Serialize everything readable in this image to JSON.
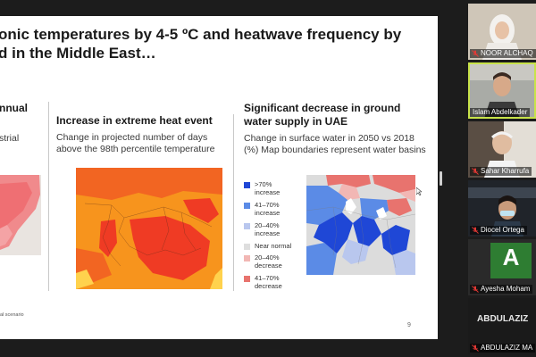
{
  "slide": {
    "title": "onic temperatures by 4-5 ºC and heatwave frequency by\nd in the Middle East…",
    "panel_left": {
      "heading": "nnual",
      "sub": "strial"
    },
    "panel_mid": {
      "heading": "Increase in extreme heat event",
      "sub": "Change in projected number of days above the 98th percentile temperature"
    },
    "panel_right": {
      "heading": "Significant decrease in ground water supply in UAE",
      "sub": "Change in surface water in 2050 vs 2018 (%) Map boundaries represent water basins"
    },
    "legend": [
      {
        "label": ">70%\nincrease",
        "color": "#1f47d6"
      },
      {
        "label": "41–70%\nincrease",
        "color": "#5b8be6"
      },
      {
        "label": "20–40%\nincrease",
        "color": "#b9c7ee"
      },
      {
        "label": "Near normal",
        "color": "#dedede"
      },
      {
        "label": "20–40%\ndecrease",
        "color": "#f2b7b4"
      },
      {
        "label": "41–70%\ndecrease",
        "color": "#e8736e"
      }
    ],
    "footnote": "al scenario",
    "page_number": "9"
  },
  "participants": [
    {
      "name": "NOOR ALCHAQ",
      "muted": true,
      "kind": "video"
    },
    {
      "name": "Islam Abdelkader",
      "muted": false,
      "kind": "video",
      "active": true
    },
    {
      "name": "Sahar Kharrufa",
      "muted": true,
      "kind": "video"
    },
    {
      "name": "Diocel Ortega",
      "muted": true,
      "kind": "video"
    },
    {
      "name": "Ayesha Moham",
      "muted": true,
      "kind": "avatar",
      "initial": "A",
      "avatar_color": "#2e7d32"
    },
    {
      "name": "ABDULAZIZ MA",
      "muted": true,
      "kind": "namecard",
      "display": "ABDULAZIZ"
    }
  ],
  "colors": {
    "mic_muted": "#e53935",
    "active_border": "#c8e34a"
  }
}
